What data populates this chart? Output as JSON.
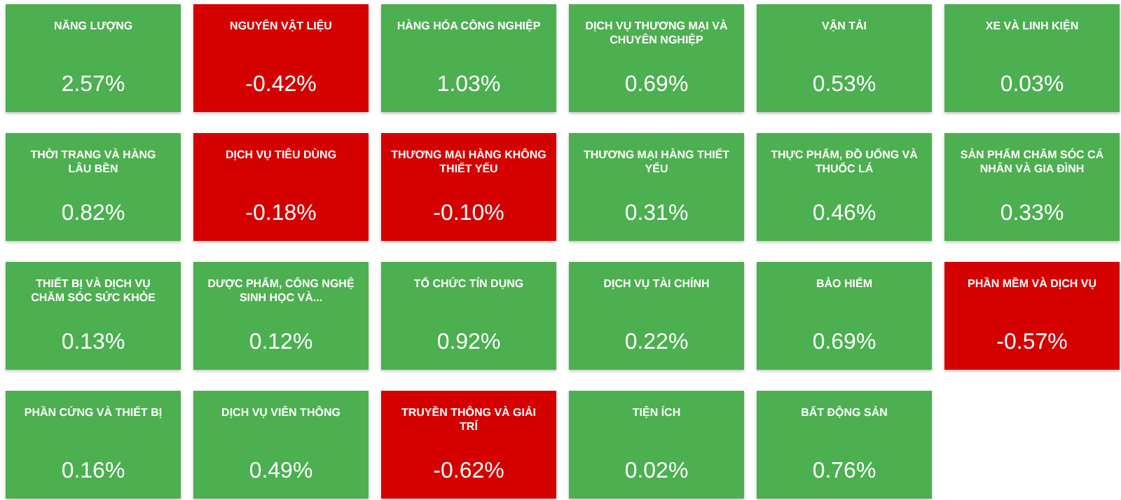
{
  "chart_data": {
    "type": "other",
    "categories": [
      "NĂNG LƯỢNG",
      "NGUYÊN VẬT LIỆU",
      "HÀNG HÓA CÔNG NGHIỆP",
      "DỊCH VỤ THƯƠNG MẠI VÀ CHUYÊN NGHIỆP",
      "VẬN TẢI",
      "XE VÀ LINH KIỆN",
      "THỜI TRANG VÀ HÀNG LÂU BỀN",
      "DỊCH VỤ TIÊU DÙNG",
      "THƯƠNG MẠI HÀNG KHÔNG THIẾT YẾU",
      "THƯƠNG MẠI HÀNG THIẾT YẾU",
      "THỰC PHẨM, ĐỒ UỐNG VÀ THUỐC LÁ",
      "SẢN PHẨM CHĂM SÓC CÁ NHÂN VÀ GIA ĐÌNH",
      "THIẾT BỊ VÀ DỊCH VỤ CHĂM SÓC SỨC KHỎE",
      "DƯỢC PHẨM, CÔNG NGHỆ SINH HỌC VÀ...",
      "TỔ CHỨC TÍN DỤNG",
      "DỊCH VỤ TÀI CHÍNH",
      "BẢO HIỂM",
      "PHẦN MỀM VÀ DỊCH VỤ",
      "PHẦN CỨNG VÀ THIẾT BỊ",
      "DỊCH VỤ VIỄN THÔNG",
      "TRUYỀN THÔNG VÀ GIẢI TRÍ",
      "TIỆN ÍCH",
      "BẤT ĐỘNG SẢN"
    ],
    "values": [
      2.57,
      -0.42,
      1.03,
      0.69,
      0.53,
      0.03,
      0.82,
      -0.18,
      -0.1,
      0.31,
      0.46,
      0.33,
      0.13,
      0.12,
      0.92,
      0.22,
      0.69,
      -0.57,
      0.16,
      0.49,
      -0.62,
      0.02,
      0.76
    ],
    "value_labels": [
      "2.57%",
      "-0.42%",
      "1.03%",
      "0.69%",
      "0.53%",
      "0.03%",
      "0.82%",
      "-0.18%",
      "-0.10%",
      "0.31%",
      "0.46%",
      "0.33%",
      "0.13%",
      "0.12%",
      "0.92%",
      "0.22%",
      "0.69%",
      "-0.57%",
      "0.16%",
      "0.49%",
      "-0.62%",
      "0.02%",
      "0.76%"
    ],
    "colors": [
      "#4caf50",
      "#d50000",
      "#4caf50",
      "#4caf50",
      "#4caf50",
      "#4caf50",
      "#4caf50",
      "#d50000",
      "#d50000",
      "#4caf50",
      "#4caf50",
      "#4caf50",
      "#4caf50",
      "#4caf50",
      "#4caf50",
      "#4caf50",
      "#4caf50",
      "#d50000",
      "#4caf50",
      "#4caf50",
      "#d50000",
      "#4caf50",
      "#4caf50"
    ]
  }
}
